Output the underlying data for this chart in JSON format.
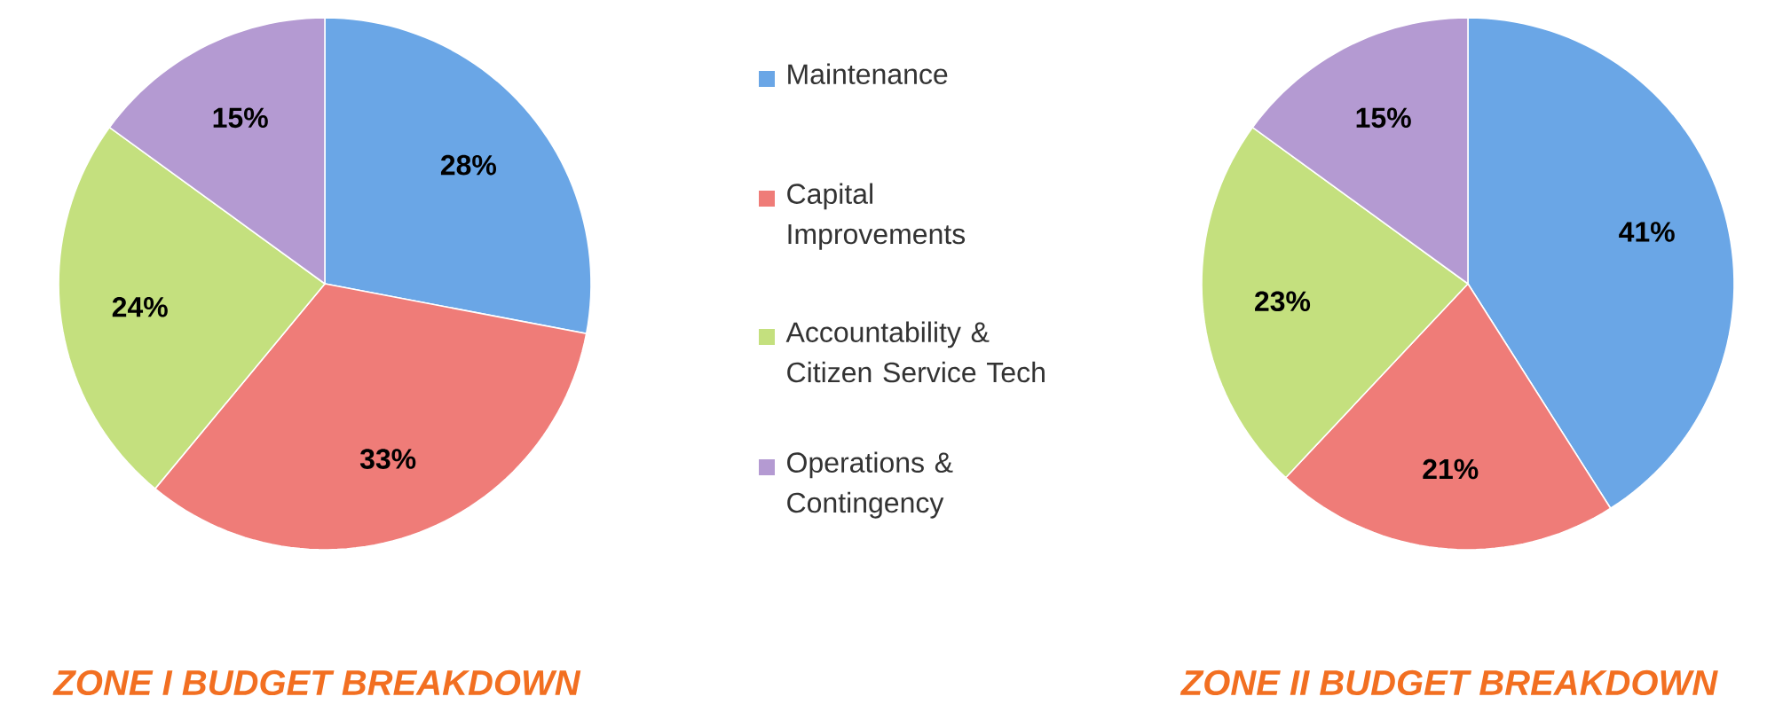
{
  "chart_data": [
    {
      "type": "pie",
      "title": "ZONE I BUDGET BREAKDOWN",
      "categories": [
        "Maintenance",
        "Capital Improvements",
        "Accountability & Citizen Service Tech",
        "Operations & Contingency"
      ],
      "values": [
        28,
        33,
        24,
        15
      ],
      "value_labels": [
        "28%",
        "33%",
        "24%",
        "15%"
      ],
      "colors": [
        "#6aa6e6",
        "#ef7c78",
        "#c4e07e",
        "#b49ad2"
      ],
      "legend": "right"
    },
    {
      "type": "pie",
      "title": "ZONE II BUDGET BREAKDOWN",
      "categories": [
        null,
        null,
        null,
        null
      ],
      "values": [
        41,
        21,
        23,
        15
      ],
      "value_labels": [
        "41%",
        "21%",
        "23%",
        "15%"
      ],
      "colors": [
        "#6aa6e6",
        "#ef7c78",
        "#c4e07e",
        "#b49ad2"
      ]
    }
  ]
}
